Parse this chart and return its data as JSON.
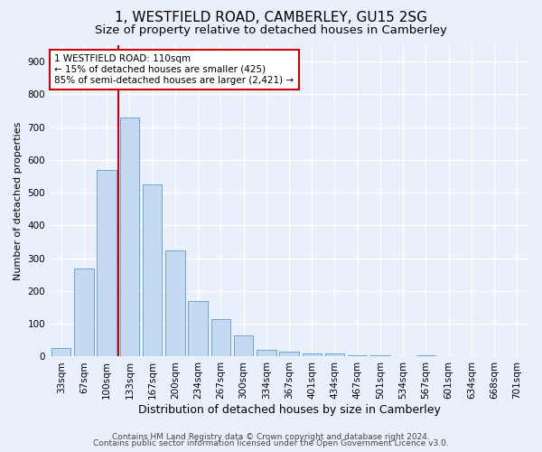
{
  "title": "1, WESTFIELD ROAD, CAMBERLEY, GU15 2SG",
  "subtitle": "Size of property relative to detached houses in Camberley",
  "xlabel": "Distribution of detached houses by size in Camberley",
  "ylabel": "Number of detached properties",
  "bar_labels": [
    "33sqm",
    "67sqm",
    "100sqm",
    "133sqm",
    "167sqm",
    "200sqm",
    "234sqm",
    "267sqm",
    "300sqm",
    "334sqm",
    "367sqm",
    "401sqm",
    "434sqm",
    "467sqm",
    "501sqm",
    "534sqm",
    "567sqm",
    "601sqm",
    "634sqm",
    "668sqm",
    "701sqm"
  ],
  "bar_values": [
    25,
    270,
    570,
    730,
    525,
    325,
    170,
    115,
    65,
    20,
    15,
    10,
    10,
    5,
    5,
    0,
    5,
    0,
    0,
    0,
    0
  ],
  "bar_color": "#c5d9f1",
  "bar_edge_color": "#5b9bd5",
  "marker_bin_index": 2,
  "marker_color": "#cc0000",
  "annotation_text": "1 WESTFIELD ROAD: 110sqm\n← 15% of detached houses are smaller (425)\n85% of semi-detached houses are larger (2,421) →",
  "annotation_box_color": "#ffffff",
  "annotation_box_edge_color": "#cc0000",
  "ylim": [
    0,
    950
  ],
  "yticks": [
    0,
    100,
    200,
    300,
    400,
    500,
    600,
    700,
    800,
    900
  ],
  "footer_line1": "Contains HM Land Registry data © Crown copyright and database right 2024.",
  "footer_line2": "Contains public sector information licensed under the Open Government Licence v3.0.",
  "bg_color": "#eaf0fb",
  "plot_bg_color": "#eaf0fb",
  "grid_color": "#ffffff",
  "title_fontsize": 11,
  "subtitle_fontsize": 9.5,
  "xlabel_fontsize": 9,
  "ylabel_fontsize": 8,
  "tick_fontsize": 7.5,
  "annotation_fontsize": 7.5,
  "footer_fontsize": 6.5
}
